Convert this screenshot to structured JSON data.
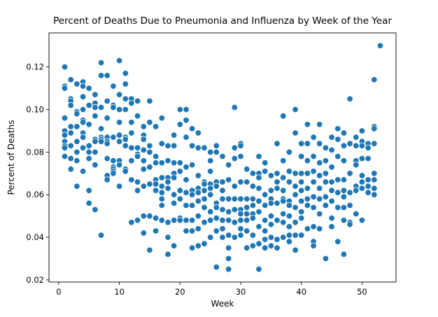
{
  "chart_data": {
    "type": "scatter",
    "title": "Percent of Deaths Due to Pneumonia and Influenza by Week of the Year",
    "xlabel": "Week",
    "ylabel": "Percent of Deaths",
    "xlim": [
      -1.6,
      55.6
    ],
    "ylim": [
      0.019,
      0.136
    ],
    "xticks": [
      0,
      10,
      20,
      30,
      40,
      50
    ],
    "yticks": [
      0.02,
      0.04,
      0.06,
      0.08,
      0.1,
      0.12
    ],
    "yticklabels": [
      "0.02",
      "0.04",
      "0.06",
      "0.08",
      "0.10",
      "0.12"
    ],
    "grid": false,
    "legend": "none",
    "marker_color": "#1f77b4",
    "points": [
      [
        1,
        0.12
      ],
      [
        1,
        0.111
      ],
      [
        1,
        0.11
      ],
      [
        1,
        0.096
      ],
      [
        1,
        0.09
      ],
      [
        1,
        0.088
      ],
      [
        1,
        0.085
      ],
      [
        1,
        0.083
      ],
      [
        1,
        0.082
      ],
      [
        1,
        0.078
      ],
      [
        2,
        0.114
      ],
      [
        2,
        0.105
      ],
      [
        2,
        0.104
      ],
      [
        2,
        0.102
      ],
      [
        2,
        0.092
      ],
      [
        2,
        0.089
      ],
      [
        2,
        0.083
      ],
      [
        2,
        0.077
      ],
      [
        2,
        0.072
      ],
      [
        3,
        0.112
      ],
      [
        3,
        0.099
      ],
      [
        3,
        0.098
      ],
      [
        3,
        0.092
      ],
      [
        3,
        0.085
      ],
      [
        3,
        0.08
      ],
      [
        3,
        0.076
      ],
      [
        3,
        0.064
      ],
      [
        4,
        0.113
      ],
      [
        4,
        0.111
      ],
      [
        4,
        0.106
      ],
      [
        4,
        0.1
      ],
      [
        4,
        0.095
      ],
      [
        4,
        0.094
      ],
      [
        4,
        0.089
      ],
      [
        4,
        0.087
      ],
      [
        4,
        0.082
      ],
      [
        4,
        0.071
      ],
      [
        5,
        0.11
      ],
      [
        5,
        0.102
      ],
      [
        5,
        0.093
      ],
      [
        5,
        0.083
      ],
      [
        5,
        0.08
      ],
      [
        5,
        0.077
      ],
      [
        5,
        0.062
      ],
      [
        5,
        0.056
      ],
      [
        6,
        0.107
      ],
      [
        6,
        0.103
      ],
      [
        6,
        0.101
      ],
      [
        6,
        0.097
      ],
      [
        6,
        0.086
      ],
      [
        6,
        0.085
      ],
      [
        6,
        0.08
      ],
      [
        6,
        0.074
      ],
      [
        6,
        0.053
      ],
      [
        7,
        0.122
      ],
      [
        7,
        0.116
      ],
      [
        7,
        0.101
      ],
      [
        7,
        0.091
      ],
      [
        7,
        0.087
      ],
      [
        7,
        0.086
      ],
      [
        7,
        0.085
      ],
      [
        7,
        0.041
      ],
      [
        8,
        0.116
      ],
      [
        8,
        0.104
      ],
      [
        8,
        0.096
      ],
      [
        8,
        0.087
      ],
      [
        8,
        0.085
      ],
      [
        8,
        0.084
      ],
      [
        8,
        0.077
      ],
      [
        8,
        0.069
      ],
      [
        8,
        0.067
      ],
      [
        9,
        0.111
      ],
      [
        9,
        0.102
      ],
      [
        9,
        0.101
      ],
      [
        9,
        0.087
      ],
      [
        9,
        0.076
      ],
      [
        9,
        0.073
      ],
      [
        9,
        0.072
      ],
      [
        9,
        0.071
      ],
      [
        9,
        0.07
      ],
      [
        10,
        0.123
      ],
      [
        10,
        0.107
      ],
      [
        10,
        0.1
      ],
      [
        10,
        0.094
      ],
      [
        10,
        0.088
      ],
      [
        10,
        0.085
      ],
      [
        10,
        0.076
      ],
      [
        10,
        0.074
      ],
      [
        10,
        0.064
      ],
      [
        11,
        0.117
      ],
      [
        11,
        0.112
      ],
      [
        11,
        0.105
      ],
      [
        11,
        0.1
      ],
      [
        11,
        0.087
      ],
      [
        11,
        0.086
      ],
      [
        11,
        0.083
      ],
      [
        11,
        0.072
      ],
      [
        11,
        0.071
      ],
      [
        12,
        0.105
      ],
      [
        12,
        0.103
      ],
      [
        12,
        0.094
      ],
      [
        12,
        0.089
      ],
      [
        12,
        0.082
      ],
      [
        12,
        0.076
      ],
      [
        12,
        0.067
      ],
      [
        12,
        0.047
      ],
      [
        13,
        0.104
      ],
      [
        13,
        0.097
      ],
      [
        13,
        0.082
      ],
      [
        13,
        0.079
      ],
      [
        13,
        0.078
      ],
      [
        13,
        0.066
      ],
      [
        13,
        0.062
      ],
      [
        13,
        0.048
      ],
      [
        14,
        0.092
      ],
      [
        14,
        0.088
      ],
      [
        14,
        0.086
      ],
      [
        14,
        0.081
      ],
      [
        14,
        0.076
      ],
      [
        14,
        0.072
      ],
      [
        14,
        0.064
      ],
      [
        14,
        0.05
      ],
      [
        14,
        0.042
      ],
      [
        15,
        0.104
      ],
      [
        15,
        0.094
      ],
      [
        15,
        0.083
      ],
      [
        15,
        0.08
      ],
      [
        15,
        0.073
      ],
      [
        15,
        0.065
      ],
      [
        15,
        0.05
      ],
      [
        15,
        0.034
      ],
      [
        16,
        0.092
      ],
      [
        16,
        0.078
      ],
      [
        16,
        0.075
      ],
      [
        16,
        0.067
      ],
      [
        16,
        0.065
      ],
      [
        16,
        0.062
      ],
      [
        16,
        0.049
      ],
      [
        16,
        0.043
      ],
      [
        17,
        0.096
      ],
      [
        17,
        0.084
      ],
      [
        17,
        0.075
      ],
      [
        17,
        0.068
      ],
      [
        17,
        0.064
      ],
      [
        17,
        0.061
      ],
      [
        17,
        0.058
      ],
      [
        17,
        0.055
      ],
      [
        17,
        0.048
      ],
      [
        18,
        0.083
      ],
      [
        18,
        0.076
      ],
      [
        18,
        0.068
      ],
      [
        18,
        0.066
      ],
      [
        18,
        0.063
      ],
      [
        18,
        0.047
      ],
      [
        18,
        0.04
      ],
      [
        18,
        0.032
      ],
      [
        19,
        0.088
      ],
      [
        19,
        0.083
      ],
      [
        19,
        0.075
      ],
      [
        19,
        0.07
      ],
      [
        19,
        0.068
      ],
      [
        19,
        0.06
      ],
      [
        19,
        0.056
      ],
      [
        19,
        0.048
      ],
      [
        19,
        0.036
      ],
      [
        20,
        0.1
      ],
      [
        20,
        0.093
      ],
      [
        20,
        0.075
      ],
      [
        20,
        0.071
      ],
      [
        20,
        0.062
      ],
      [
        20,
        0.058
      ],
      [
        20,
        0.049
      ],
      [
        20,
        0.048
      ],
      [
        21,
        0.1
      ],
      [
        21,
        0.095
      ],
      [
        21,
        0.087
      ],
      [
        21,
        0.073
      ],
      [
        21,
        0.067
      ],
      [
        21,
        0.061
      ],
      [
        21,
        0.055
      ],
      [
        21,
        0.048
      ],
      [
        21,
        0.043
      ],
      [
        22,
        0.091
      ],
      [
        22,
        0.083
      ],
      [
        22,
        0.074
      ],
      [
        22,
        0.062
      ],
      [
        22,
        0.06
      ],
      [
        22,
        0.055
      ],
      [
        22,
        0.048
      ],
      [
        22,
        0.043
      ],
      [
        22,
        0.035
      ],
      [
        23,
        0.089
      ],
      [
        23,
        0.082
      ],
      [
        23,
        0.069
      ],
      [
        23,
        0.063
      ],
      [
        23,
        0.061
      ],
      [
        23,
        0.057
      ],
      [
        23,
        0.05
      ],
      [
        23,
        0.044
      ],
      [
        23,
        0.036
      ],
      [
        24,
        0.082
      ],
      [
        24,
        0.066
      ],
      [
        24,
        0.065
      ],
      [
        24,
        0.062
      ],
      [
        24,
        0.058
      ],
      [
        24,
        0.054
      ],
      [
        24,
        0.047
      ],
      [
        24,
        0.037
      ],
      [
        25,
        0.08
      ],
      [
        25,
        0.076
      ],
      [
        25,
        0.071
      ],
      [
        25,
        0.065
      ],
      [
        25,
        0.063
      ],
      [
        25,
        0.06
      ],
      [
        25,
        0.052
      ],
      [
        25,
        0.048
      ],
      [
        25,
        0.04
      ],
      [
        26,
        0.083
      ],
      [
        26,
        0.08
      ],
      [
        26,
        0.066
      ],
      [
        26,
        0.064
      ],
      [
        26,
        0.056
      ],
      [
        26,
        0.054
      ],
      [
        26,
        0.049
      ],
      [
        26,
        0.043
      ],
      [
        26,
        0.026
      ],
      [
        27,
        0.078
      ],
      [
        27,
        0.066
      ],
      [
        27,
        0.062
      ],
      [
        27,
        0.058
      ],
      [
        27,
        0.053
      ],
      [
        27,
        0.048
      ],
      [
        27,
        0.044
      ],
      [
        27,
        0.04
      ],
      [
        28,
        0.074
      ],
      [
        28,
        0.067
      ],
      [
        28,
        0.058
      ],
      [
        28,
        0.052
      ],
      [
        28,
        0.048
      ],
      [
        28,
        0.041
      ],
      [
        28,
        0.035
      ],
      [
        28,
        0.03
      ],
      [
        28,
        0.025
      ],
      [
        29,
        0.101
      ],
      [
        29,
        0.082
      ],
      [
        29,
        0.077
      ],
      [
        29,
        0.064
      ],
      [
        29,
        0.058
      ],
      [
        29,
        0.053
      ],
      [
        29,
        0.047
      ],
      [
        29,
        0.04
      ],
      [
        30,
        0.084
      ],
      [
        30,
        0.083
      ],
      [
        30,
        0.078
      ],
      [
        30,
        0.066
      ],
      [
        30,
        0.058
      ],
      [
        30,
        0.053
      ],
      [
        30,
        0.051
      ],
      [
        30,
        0.048
      ],
      [
        30,
        0.044
      ],
      [
        30,
        0.041
      ],
      [
        31,
        0.072
      ],
      [
        31,
        0.066
      ],
      [
        31,
        0.058
      ],
      [
        31,
        0.054
      ],
      [
        31,
        0.051
      ],
      [
        31,
        0.048
      ],
      [
        31,
        0.043
      ],
      [
        31,
        0.035
      ],
      [
        32,
        0.07
      ],
      [
        32,
        0.064
      ],
      [
        32,
        0.058
      ],
      [
        32,
        0.055
      ],
      [
        32,
        0.051
      ],
      [
        32,
        0.049
      ],
      [
        32,
        0.041
      ],
      [
        32,
        0.036
      ],
      [
        33,
        0.078
      ],
      [
        33,
        0.07
      ],
      [
        33,
        0.068
      ],
      [
        33,
        0.063
      ],
      [
        33,
        0.057
      ],
      [
        33,
        0.052
      ],
      [
        33,
        0.045
      ],
      [
        33,
        0.037
      ],
      [
        33,
        0.025
      ],
      [
        34,
        0.075
      ],
      [
        34,
        0.071
      ],
      [
        34,
        0.06
      ],
      [
        34,
        0.055
      ],
      [
        34,
        0.048
      ],
      [
        34,
        0.043
      ],
      [
        34,
        0.039
      ],
      [
        34,
        0.035
      ],
      [
        35,
        0.069
      ],
      [
        35,
        0.062
      ],
      [
        35,
        0.058
      ],
      [
        35,
        0.056
      ],
      [
        35,
        0.05
      ],
      [
        35,
        0.046
      ],
      [
        35,
        0.04
      ],
      [
        35,
        0.036
      ],
      [
        36,
        0.084
      ],
      [
        36,
        0.07
      ],
      [
        36,
        0.066
      ],
      [
        36,
        0.063
      ],
      [
        36,
        0.056
      ],
      [
        36,
        0.048
      ],
      [
        36,
        0.039
      ],
      [
        36,
        0.035
      ],
      [
        37,
        0.097
      ],
      [
        37,
        0.076
      ],
      [
        37,
        0.068
      ],
      [
        37,
        0.062
      ],
      [
        37,
        0.058
      ],
      [
        37,
        0.057
      ],
      [
        37,
        0.051
      ],
      [
        37,
        0.047
      ],
      [
        37,
        0.04
      ],
      [
        38,
        0.08
      ],
      [
        38,
        0.071
      ],
      [
        38,
        0.066
      ],
      [
        38,
        0.057
      ],
      [
        38,
        0.055
      ],
      [
        38,
        0.05
      ],
      [
        38,
        0.045
      ],
      [
        38,
        0.041
      ],
      [
        38,
        0.038
      ],
      [
        39,
        0.1
      ],
      [
        39,
        0.089
      ],
      [
        39,
        0.07
      ],
      [
        39,
        0.064
      ],
      [
        39,
        0.06
      ],
      [
        39,
        0.054
      ],
      [
        39,
        0.047
      ],
      [
        39,
        0.041
      ],
      [
        39,
        0.034
      ],
      [
        40,
        0.084
      ],
      [
        40,
        0.078
      ],
      [
        40,
        0.07
      ],
      [
        40,
        0.066
      ],
      [
        40,
        0.062
      ],
      [
        40,
        0.057
      ],
      [
        40,
        0.052
      ],
      [
        40,
        0.049
      ],
      [
        40,
        0.041
      ],
      [
        41,
        0.093
      ],
      [
        41,
        0.084
      ],
      [
        41,
        0.076
      ],
      [
        41,
        0.07
      ],
      [
        41,
        0.063
      ],
      [
        41,
        0.058
      ],
      [
        41,
        0.055
      ],
      [
        41,
        0.044
      ],
      [
        42,
        0.087
      ],
      [
        42,
        0.078
      ],
      [
        42,
        0.071
      ],
      [
        42,
        0.066
      ],
      [
        42,
        0.059
      ],
      [
        42,
        0.054
      ],
      [
        42,
        0.045
      ],
      [
        42,
        0.038
      ],
      [
        42,
        0.036
      ],
      [
        43,
        0.093
      ],
      [
        43,
        0.084
      ],
      [
        43,
        0.075
      ],
      [
        43,
        0.069
      ],
      [
        43,
        0.063
      ],
      [
        43,
        0.058
      ],
      [
        43,
        0.051
      ],
      [
        43,
        0.044
      ],
      [
        44,
        0.082
      ],
      [
        44,
        0.076
      ],
      [
        44,
        0.07
      ],
      [
        44,
        0.066
      ],
      [
        44,
        0.059
      ],
      [
        44,
        0.055
      ],
      [
        44,
        0.03
      ],
      [
        45,
        0.087
      ],
      [
        45,
        0.081
      ],
      [
        45,
        0.073
      ],
      [
        45,
        0.066
      ],
      [
        45,
        0.062
      ],
      [
        45,
        0.057
      ],
      [
        45,
        0.049
      ],
      [
        45,
        0.045
      ],
      [
        46,
        0.091
      ],
      [
        46,
        0.086
      ],
      [
        46,
        0.078
      ],
      [
        46,
        0.067
      ],
      [
        46,
        0.061
      ],
      [
        46,
        0.054
      ],
      [
        46,
        0.038
      ],
      [
        47,
        0.089
      ],
      [
        47,
        0.083
      ],
      [
        47,
        0.076
      ],
      [
        47,
        0.067
      ],
      [
        47,
        0.062
      ],
      [
        47,
        0.059
      ],
      [
        47,
        0.054
      ],
      [
        47,
        0.048
      ],
      [
        47,
        0.032
      ],
      [
        48,
        0.105
      ],
      [
        48,
        0.084
      ],
      [
        48,
        0.07
      ],
      [
        48,
        0.061
      ],
      [
        48,
        0.055
      ],
      [
        48,
        0.047
      ],
      [
        48,
        0.046
      ],
      [
        49,
        0.087
      ],
      [
        49,
        0.083
      ],
      [
        49,
        0.076
      ],
      [
        49,
        0.074
      ],
      [
        49,
        0.064
      ],
      [
        49,
        0.062
      ],
      [
        49,
        0.051
      ],
      [
        50,
        0.09
      ],
      [
        50,
        0.085
      ],
      [
        50,
        0.083
      ],
      [
        50,
        0.077
      ],
      [
        50,
        0.069
      ],
      [
        50,
        0.066
      ],
      [
        50,
        0.063
      ],
      [
        50,
        0.048
      ],
      [
        51,
        0.084
      ],
      [
        51,
        0.082
      ],
      [
        51,
        0.077
      ],
      [
        51,
        0.067
      ],
      [
        51,
        0.064
      ],
      [
        51,
        0.061
      ],
      [
        52,
        0.114
      ],
      [
        52,
        0.092
      ],
      [
        52,
        0.091
      ],
      [
        52,
        0.084
      ],
      [
        52,
        0.07
      ],
      [
        52,
        0.067
      ],
      [
        52,
        0.063
      ],
      [
        52,
        0.06
      ],
      [
        53,
        0.13
      ]
    ]
  }
}
